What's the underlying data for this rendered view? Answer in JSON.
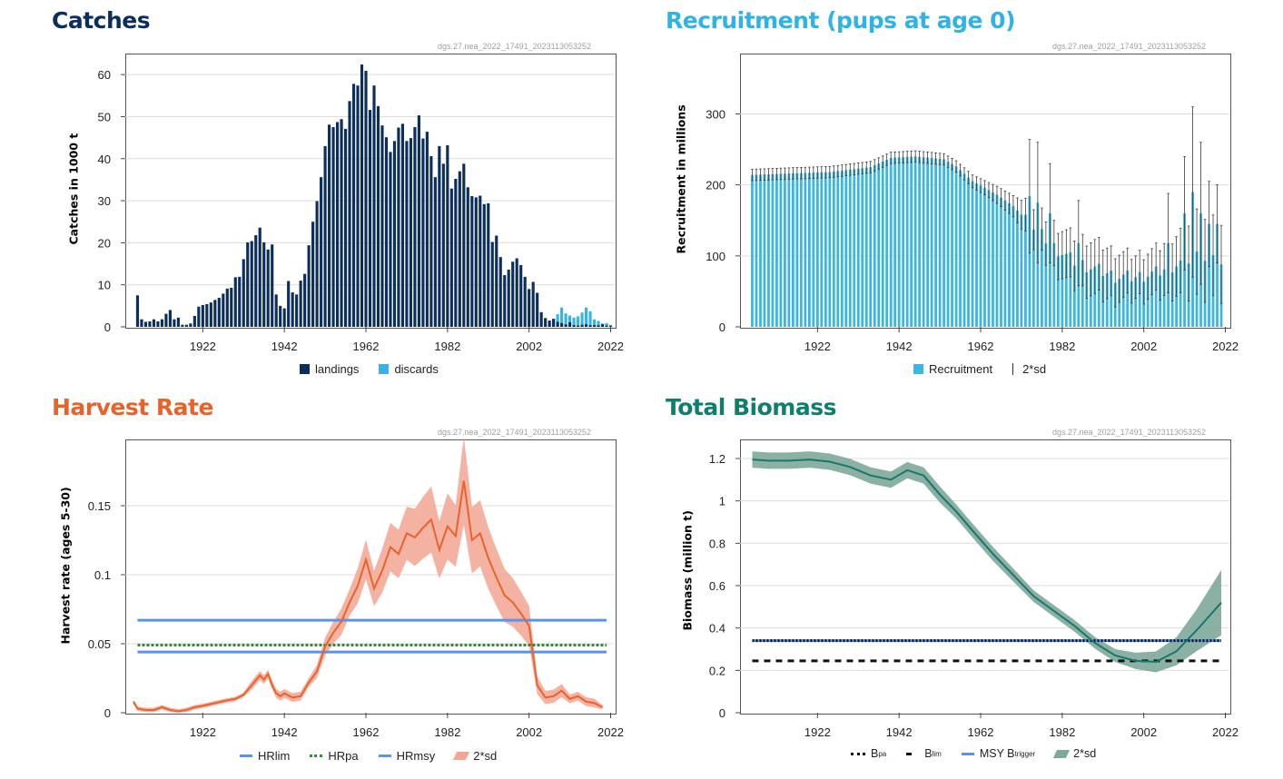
{
  "watermark": "dgs.27.nea_2022_17491_2023113053252",
  "colors": {
    "navy": "#0b2e5c",
    "catches_title": "#0b2e5c",
    "recruit_title": "#2fb3e5",
    "harvest_title": "#e8632b",
    "biomass_title": "#0f7f6c",
    "discards": "#35b5e5",
    "recruit_bar": "#3ab6e2",
    "harvest_line": "#e8632b",
    "harvest_band": "#f2a593",
    "ref_blue": "#5b93ea",
    "ref_green": "#2e8b3a",
    "biomass_line": "#17786a",
    "biomass_band": "#7ea99a"
  },
  "panels": {
    "catches": {
      "title": "Catches",
      "ylabel": "Catches in 1000 t",
      "legend": {
        "landings": "landings",
        "discards": "discards"
      }
    },
    "recruitment": {
      "title": "Recruitment (pups at age 0)",
      "ylabel": "Recruitment in millions",
      "legend": {
        "recruitment": "Recruitment",
        "sd": "2*sd"
      }
    },
    "harvest": {
      "title": "Harvest Rate",
      "ylabel": "Harvest rate (ages 5-30)",
      "legend": {
        "hrlim": "HRlim",
        "hrpa": "HRpa",
        "hrmsy": "HRmsy",
        "sd": "2*sd"
      }
    },
    "biomass": {
      "title": "Total Biomass",
      "ylabel": "Biomass (million t)",
      "legend": {
        "bpa": "B",
        "bpa_sub": "pa",
        "blim": "B",
        "blim_sub": "lim",
        "msy": "MSY B",
        "msy_sub": "trigger",
        "sd": "2*sd"
      }
    }
  },
  "chart_data": [
    {
      "id": "catches",
      "type": "bar",
      "xlim": [
        1903,
        2023
      ],
      "ylim": [
        0,
        65
      ],
      "xticks": [
        1922,
        1942,
        1962,
        1982,
        2002,
        2022
      ],
      "yticks": [
        0,
        10,
        20,
        30,
        40,
        50,
        60
      ],
      "x_start": 1906,
      "landings": [
        7.5,
        1.8,
        1.2,
        1.3,
        1.8,
        1.3,
        1.8,
        3.1,
        4,
        1.8,
        2.2,
        0.5,
        0.5,
        0.8,
        2.6,
        4.8,
        5.2,
        5.4,
        5.8,
        6.4,
        6.9,
        7.9,
        9.1,
        9.3,
        11.8,
        11.9,
        16.1,
        20.1,
        20.4,
        21.8,
        23.6,
        20.1,
        18.4,
        19.6,
        7.7,
        5,
        4.4,
        10.9,
        8.2,
        7.7,
        11,
        12.6,
        19.4,
        25,
        29.9,
        35.6,
        43,
        48.1,
        47.5,
        48.7,
        49.4,
        47.1,
        53.7,
        57.8,
        57.4,
        62.4,
        60.9,
        51.6,
        57.4,
        52.5,
        47.9,
        45.1,
        41.6,
        44.2,
        47.4,
        48.3,
        44.2,
        44.9,
        47.5,
        50.3,
        44.8,
        46.4,
        40.6,
        35.6,
        43,
        38.8,
        43.2,
        32.9,
        35.2,
        37,
        38.8,
        33.2,
        31.1,
        30.8,
        31.2,
        29.2,
        29.4,
        20.2,
        21.7,
        16.6,
        12.3,
        13.6,
        15.5,
        16.3,
        14.7,
        11.9,
        9,
        10.7,
        8.1,
        3.5,
        2.1,
        1.5,
        1.9,
        1.2,
        0.9,
        0.6,
        1.1,
        0.4,
        0.3,
        0.5,
        0.6,
        0.4,
        0.4,
        0.4,
        0.6,
        0.3,
        0.2
      ],
      "discards": [
        0,
        0,
        0,
        0,
        0,
        0,
        0,
        0,
        0,
        0,
        0,
        0,
        0,
        0,
        0,
        0,
        0,
        0,
        0,
        0,
        0,
        0,
        0,
        0,
        0,
        0,
        0,
        0,
        0,
        0,
        0,
        0,
        0,
        0,
        0,
        0,
        0,
        0,
        0,
        0,
        0,
        0,
        0,
        0,
        0,
        0,
        0,
        0,
        0,
        0,
        0,
        0,
        0,
        0,
        0,
        0,
        0,
        0,
        0,
        0,
        0,
        0,
        0,
        0,
        0,
        0,
        0,
        0,
        0,
        0,
        0,
        0,
        0,
        0,
        0,
        0,
        0,
        0,
        0,
        0,
        0,
        0,
        0,
        0,
        0,
        0,
        0,
        0,
        0,
        0,
        0,
        0,
        0,
        0,
        0,
        0,
        0,
        0,
        0,
        0,
        0.3,
        1.1,
        1.9,
        3,
        4.6,
        3.2,
        2.7,
        2.2,
        2.5,
        3.4,
        4.6,
        3.7,
        1.8,
        1.4,
        0.8,
        0.9,
        0.5
      ]
    },
    {
      "id": "recruitment",
      "type": "bar",
      "xlim": [
        1903,
        2023
      ],
      "ylim": [
        0,
        385
      ],
      "xticks": [
        1922,
        1942,
        1962,
        1982,
        2002,
        2022
      ],
      "yticks": [
        0,
        100,
        200,
        300
      ],
      "x_start": 1906,
      "x_end": 2021,
      "anchors_x": [
        1906,
        1915,
        1925,
        1935,
        1940,
        1946,
        1953,
        1956,
        1960,
        1963,
        1966,
        1970,
        1975,
        1980,
        1985,
        1990,
        1995,
        2000,
        2005,
        2010,
        2015,
        2021
      ],
      "anchors_value": [
        214,
        216,
        218,
        225,
        238,
        240,
        236,
        226,
        205,
        196,
        186,
        170,
        140,
        112,
        92,
        82,
        71,
        70,
        76,
        88,
        100,
        88
      ],
      "anchors_sd": [
        8,
        8,
        8,
        8,
        8,
        8,
        8,
        8,
        9,
        10,
        12,
        15,
        28,
        32,
        35,
        38,
        34,
        30,
        33,
        42,
        60,
        55
      ],
      "spikes": [
        {
          "x": 1974,
          "value": 184,
          "sd": 80
        },
        {
          "x": 1976,
          "value": 175,
          "sd": 85
        },
        {
          "x": 1979,
          "value": 160,
          "sd": 70
        },
        {
          "x": 1986,
          "value": 118,
          "sd": 60
        },
        {
          "x": 2008,
          "value": 118,
          "sd": 70
        },
        {
          "x": 2012,
          "value": 160,
          "sd": 80
        },
        {
          "x": 2014,
          "value": 190,
          "sd": 120
        },
        {
          "x": 2016,
          "value": 160,
          "sd": 100
        },
        {
          "x": 2018,
          "value": 145,
          "sd": 60
        },
        {
          "x": 2020,
          "value": 145,
          "sd": 55
        }
      ]
    },
    {
      "id": "harvest",
      "type": "line",
      "xlim": [
        1903,
        2023
      ],
      "ylim": [
        0,
        0.198
      ],
      "xticks": [
        1922,
        1942,
        1962,
        1982,
        2002,
        2022
      ],
      "yticks": [
        0,
        0.05,
        0.1,
        0.15
      ],
      "ytick_labels": [
        "0",
        "0.05",
        "0.1",
        "0.15"
      ],
      "reference_lines": {
        "HRlim": 0.067,
        "HRpa": 0.049,
        "HRmsy": 0.044
      },
      "x": [
        1905,
        1906,
        1908,
        1910,
        1912,
        1914,
        1916,
        1918,
        1920,
        1922,
        1925,
        1928,
        1930,
        1932,
        1934,
        1936,
        1937,
        1938,
        1939,
        1940,
        1941,
        1942,
        1944,
        1946,
        1948,
        1950,
        1952,
        1954,
        1956,
        1958,
        1960,
        1962,
        1964,
        1966,
        1968,
        1970,
        1972,
        1974,
        1976,
        1978,
        1980,
        1982,
        1984,
        1986,
        1988,
        1990,
        1992,
        1994,
        1996,
        1998,
        2000,
        2002,
        2004,
        2006,
        2008,
        2010,
        2012,
        2014,
        2016,
        2018,
        2020
      ],
      "y": [
        0.008,
        0.003,
        0.002,
        0.002,
        0.004,
        0.002,
        0.001,
        0.002,
        0.004,
        0.005,
        0.007,
        0.009,
        0.01,
        0.013,
        0.02,
        0.027,
        0.024,
        0.028,
        0.02,
        0.014,
        0.012,
        0.014,
        0.011,
        0.012,
        0.022,
        0.03,
        0.048,
        0.058,
        0.066,
        0.08,
        0.092,
        0.111,
        0.09,
        0.103,
        0.12,
        0.115,
        0.13,
        0.127,
        0.134,
        0.14,
        0.118,
        0.135,
        0.128,
        0.168,
        0.125,
        0.13,
        0.112,
        0.098,
        0.085,
        0.08,
        0.072,
        0.063,
        0.02,
        0.011,
        0.012,
        0.016,
        0.01,
        0.012,
        0.008,
        0.007,
        0.004
      ],
      "sd": [
        0.001,
        0.001,
        0.001,
        0.001,
        0.001,
        0.001,
        0.001,
        0.001,
        0.001,
        0.001,
        0.001,
        0.001,
        0.001,
        0.001,
        0.002,
        0.002,
        0.002,
        0.002,
        0.002,
        0.002,
        0.002,
        0.002,
        0.002,
        0.002,
        0.002,
        0.003,
        0.004,
        0.005,
        0.006,
        0.006,
        0.008,
        0.009,
        0.008,
        0.01,
        0.011,
        0.011,
        0.012,
        0.013,
        0.014,
        0.015,
        0.013,
        0.015,
        0.014,
        0.02,
        0.015,
        0.015,
        0.014,
        0.013,
        0.012,
        0.011,
        0.01,
        0.009,
        0.004,
        0.003,
        0.003,
        0.003,
        0.002,
        0.002,
        0.002,
        0.002,
        0.001
      ]
    },
    {
      "id": "biomass",
      "type": "line",
      "xlim": [
        1903,
        2023
      ],
      "ylim": [
        0,
        1.29
      ],
      "xticks": [
        1922,
        1942,
        1962,
        1982,
        2002,
        2022
      ],
      "yticks": [
        0,
        0.2,
        0.4,
        0.6,
        0.8,
        1,
        1.2
      ],
      "ytick_labels": [
        "0",
        "0.2",
        "0.4",
        "0.6",
        "0.8",
        "1",
        "1.2"
      ],
      "reference_lines": {
        "Bpa": 0.34,
        "Blim": 0.245,
        "MSY_Btrigger": 0.34
      },
      "x": [
        1906,
        1910,
        1915,
        1920,
        1925,
        1930,
        1935,
        1940,
        1944,
        1948,
        1952,
        1956,
        1960,
        1965,
        1970,
        1975,
        1980,
        1985,
        1990,
        1995,
        2000,
        2005,
        2010,
        2015,
        2021
      ],
      "y": [
        1.195,
        1.19,
        1.19,
        1.195,
        1.185,
        1.16,
        1.12,
        1.1,
        1.145,
        1.12,
        1.03,
        0.95,
        0.86,
        0.75,
        0.65,
        0.55,
        0.48,
        0.41,
        0.33,
        0.27,
        0.245,
        0.24,
        0.29,
        0.39,
        0.52
      ],
      "sd": [
        0.035,
        0.035,
        0.035,
        0.035,
        0.035,
        0.035,
        0.035,
        0.035,
        0.035,
        0.035,
        0.035,
        0.03,
        0.03,
        0.03,
        0.028,
        0.025,
        0.025,
        0.025,
        0.025,
        0.028,
        0.035,
        0.045,
        0.06,
        0.09,
        0.14
      ]
    }
  ]
}
